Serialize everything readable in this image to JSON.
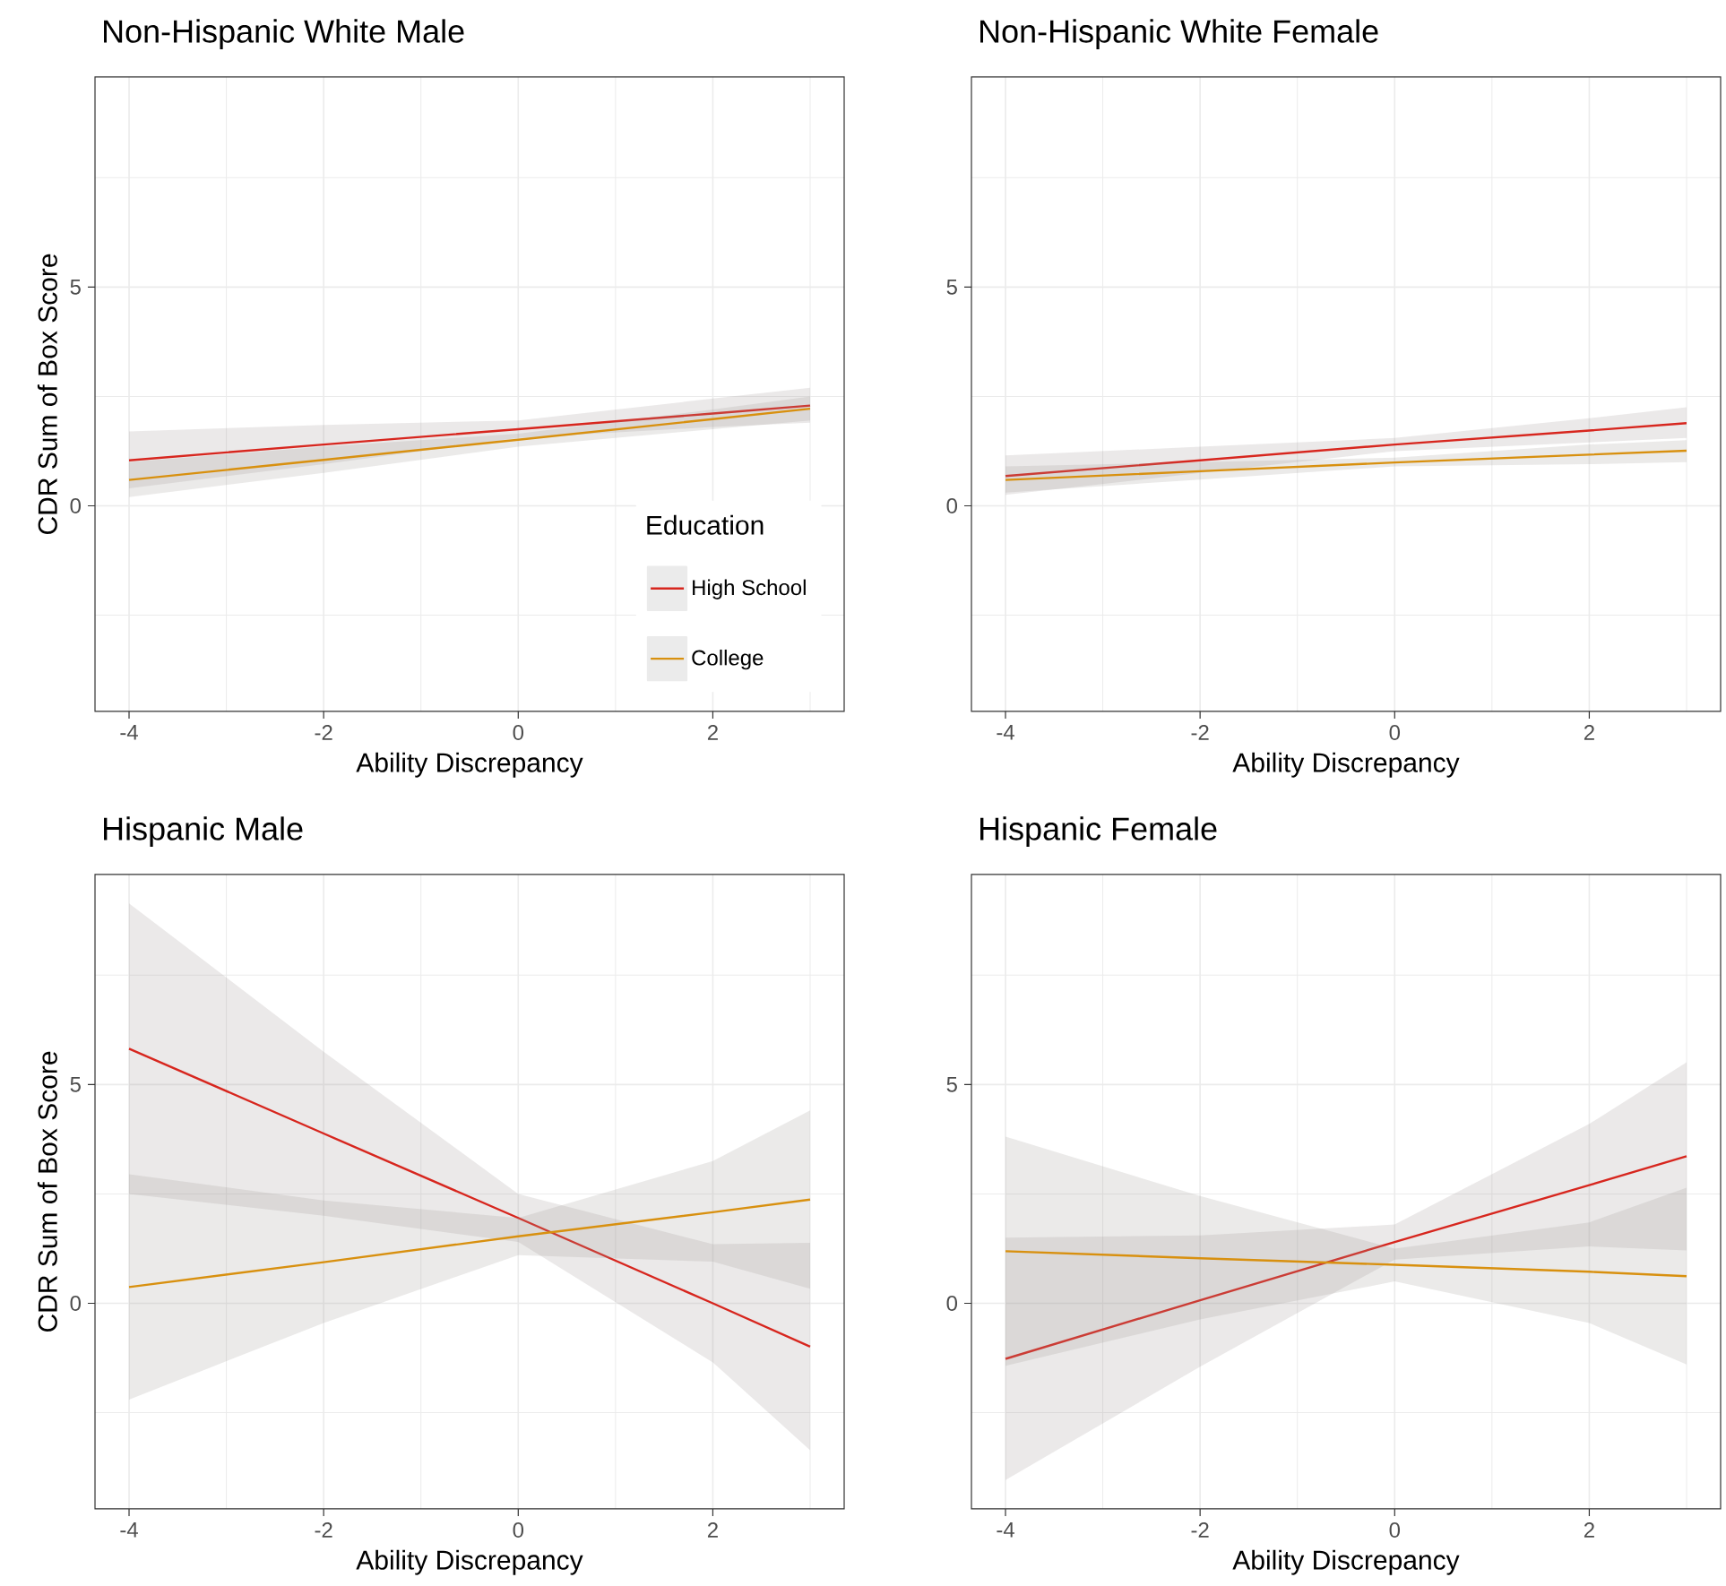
{
  "chart_data": [
    {
      "type": "line",
      "title": "Non-Hispanic White Male",
      "xlabel": "Ability Discrepancy",
      "ylabel": "CDR Sum of Box Score",
      "legend_title": "Education",
      "legend": "bottom right",
      "grid": true,
      "xlim": [
        -4.35,
        3.35
      ],
      "ylim": [
        -4.7,
        9.8
      ],
      "xticks": [
        -4,
        -2,
        0,
        2
      ],
      "yticks": [
        0,
        5
      ],
      "x": [
        -4,
        -2,
        0,
        2,
        3
      ],
      "series": [
        {
          "name": "High School",
          "color": "#d7261e",
          "values": [
            1.04,
            1.4,
            1.75,
            2.11,
            2.29
          ],
          "lower": [
            0.4,
            0.95,
            1.55,
            1.8,
            1.9
          ],
          "upper": [
            1.7,
            1.85,
            1.95,
            2.45,
            2.7
          ]
        },
        {
          "name": "College",
          "color": "#d8900f",
          "values": [
            0.59,
            1.05,
            1.51,
            1.98,
            2.22
          ],
          "lower": [
            0.2,
            0.75,
            1.35,
            1.75,
            1.95
          ],
          "upper": [
            1.0,
            1.35,
            1.65,
            2.2,
            2.5
          ]
        }
      ]
    },
    {
      "type": "line",
      "title": "Non-Hispanic White Female",
      "xlabel": "Ability Discrepancy",
      "grid": true,
      "xlim": [
        -4.35,
        3.35
      ],
      "ylim": [
        -4.7,
        9.8
      ],
      "xticks": [
        -4,
        -2,
        0,
        2
      ],
      "yticks": [
        0,
        5
      ],
      "x": [
        -4,
        -2,
        0,
        2,
        3
      ],
      "series": [
        {
          "color": "#d7261e",
          "values": [
            0.68,
            1.04,
            1.4,
            1.72,
            1.89
          ],
          "lower": [
            0.25,
            0.75,
            1.25,
            1.45,
            1.55
          ],
          "upper": [
            1.15,
            1.35,
            1.55,
            2.0,
            2.25
          ]
        },
        {
          "color": "#d8900f",
          "values": [
            0.59,
            0.79,
            0.99,
            1.17,
            1.26
          ],
          "lower": [
            0.3,
            0.6,
            0.9,
            0.95,
            1.0
          ],
          "upper": [
            0.9,
            1.0,
            1.1,
            1.4,
            1.5
          ]
        }
      ]
    },
    {
      "type": "line",
      "title": "Hispanic Male",
      "xlabel": "Ability Discrepancy",
      "ylabel": "CDR Sum of Box Score",
      "grid": true,
      "xlim": [
        -4.35,
        3.35
      ],
      "ylim": [
        -4.7,
        9.8
      ],
      "xticks": [
        -4,
        -2,
        0,
        2
      ],
      "yticks": [
        0,
        5
      ],
      "x": [
        -4,
        -2,
        0,
        2,
        3
      ],
      "series": [
        {
          "color": "#d7261e",
          "values": [
            5.82,
            3.88,
            1.95,
            0.0,
            -0.99
          ],
          "lower": [
            2.5,
            2.0,
            1.4,
            -1.35,
            -3.36
          ],
          "upper": [
            9.14,
            5.75,
            2.5,
            1.35,
            1.38
          ]
        },
        {
          "color": "#d8900f",
          "values": [
            0.37,
            0.94,
            1.53,
            2.08,
            2.37
          ],
          "lower": [
            -2.2,
            -0.45,
            1.1,
            0.95,
            0.33
          ],
          "upper": [
            2.95,
            2.35,
            1.95,
            3.25,
            4.41
          ]
        }
      ]
    },
    {
      "type": "line",
      "title": "Hispanic Female",
      "xlabel": "Ability Discrepancy",
      "grid": true,
      "xlim": [
        -4.35,
        3.35
      ],
      "ylim": [
        -4.7,
        9.8
      ],
      "xticks": [
        -4,
        -2,
        0,
        2
      ],
      "yticks": [
        0,
        5
      ],
      "x": [
        -4,
        -2,
        0,
        2,
        3
      ],
      "series": [
        {
          "color": "#d7261e",
          "values": [
            -1.27,
            0.07,
            1.4,
            2.7,
            3.36
          ],
          "lower": [
            -4.04,
            -1.45,
            1.0,
            1.3,
            1.21
          ],
          "upper": [
            1.5,
            1.55,
            1.8,
            4.1,
            5.51
          ]
        },
        {
          "color": "#d8900f",
          "values": [
            1.19,
            1.03,
            0.88,
            0.72,
            0.62
          ],
          "lower": [
            -1.43,
            -0.37,
            0.5,
            -0.45,
            -1.4
          ],
          "upper": [
            3.81,
            2.45,
            1.25,
            1.85,
            2.64
          ]
        }
      ]
    }
  ]
}
